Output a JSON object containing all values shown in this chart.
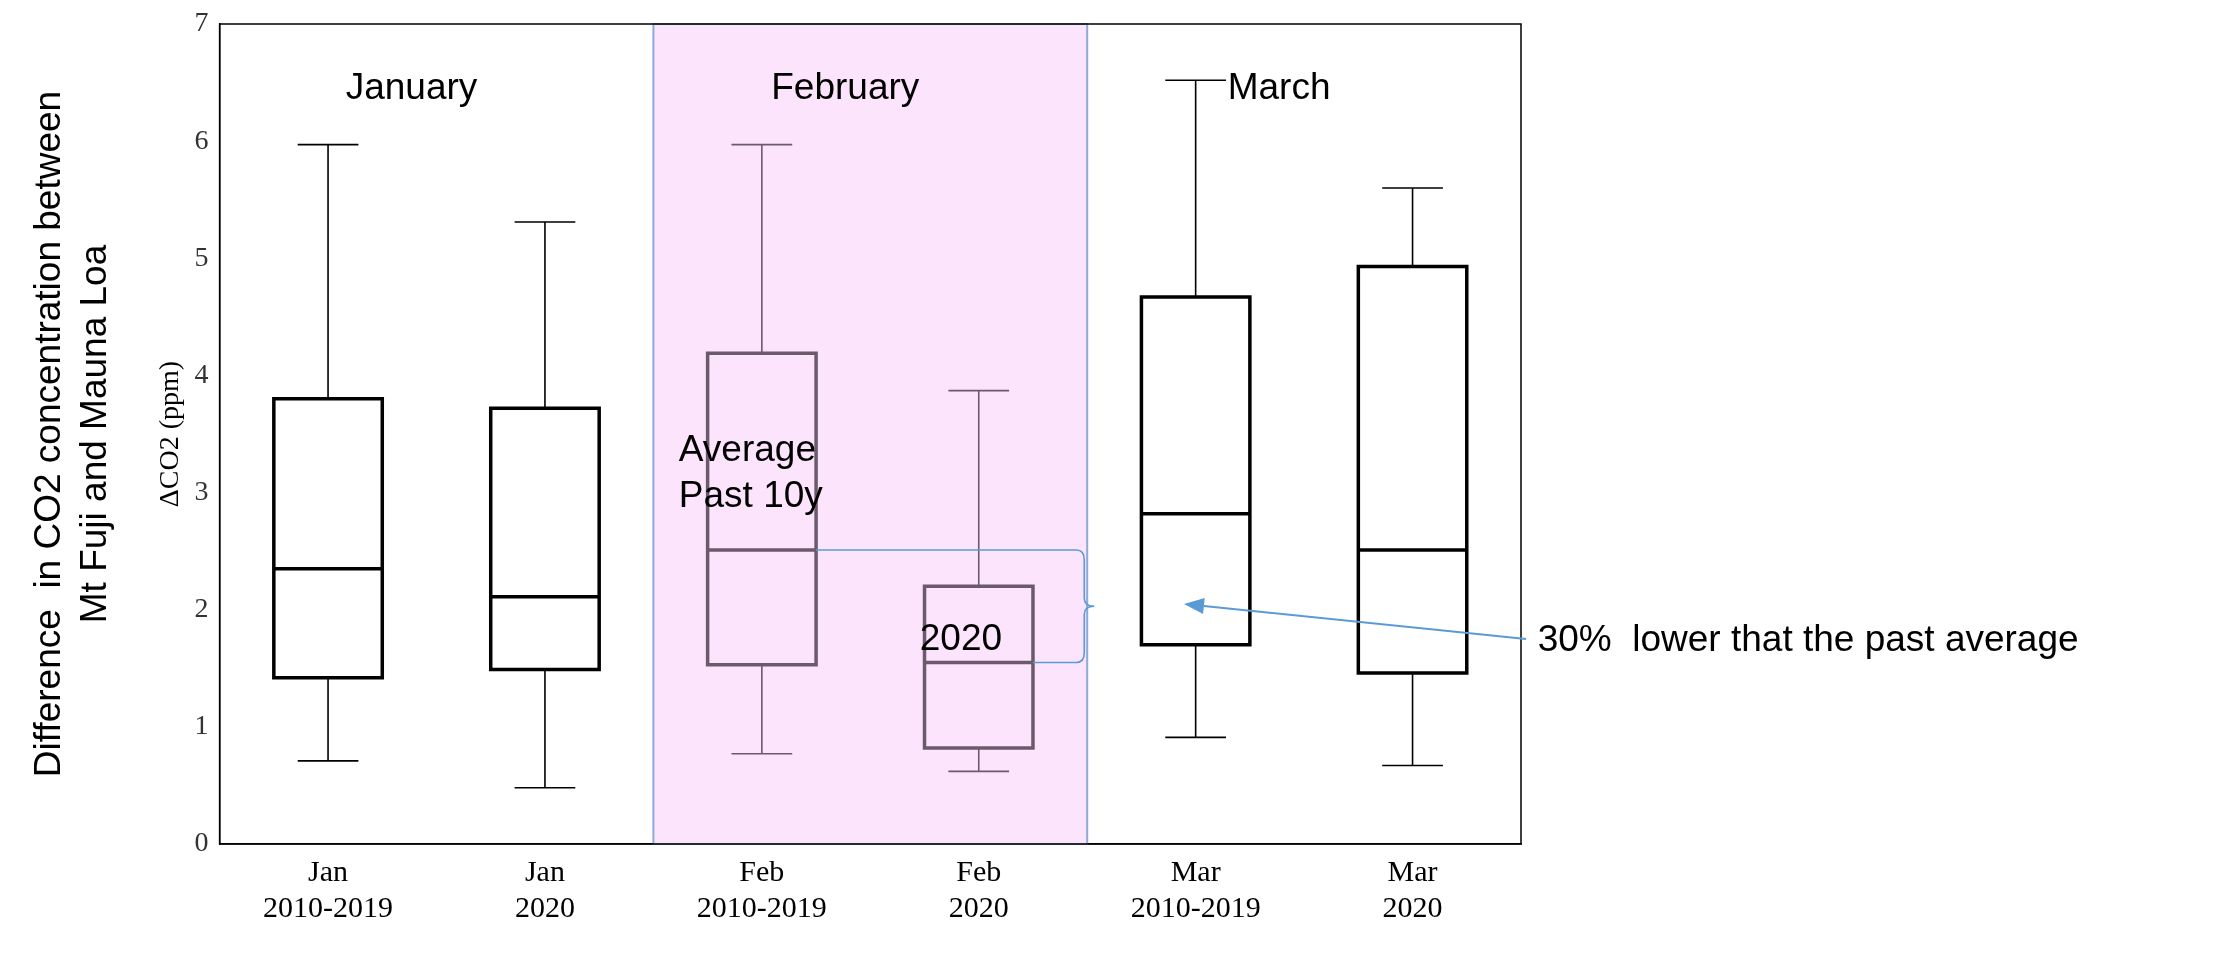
{
  "chart_data": {
    "type": "box",
    "ylabel": "ΔCO2 (ppm)",
    "categories": [
      "Jan 2010-2019",
      "Jan 2020",
      "Feb 2010-2019",
      "Feb 2020",
      "Mar 2010-2019",
      "Mar 2020"
    ],
    "boxes": [
      {
        "low": 0.71,
        "q1": 1.42,
        "median": 2.35,
        "q3": 3.8,
        "high": 5.97
      },
      {
        "low": 0.48,
        "q1": 1.49,
        "median": 2.11,
        "q3": 3.72,
        "high": 5.31
      },
      {
        "low": 0.77,
        "q1": 1.53,
        "median": 2.51,
        "q3": 4.19,
        "high": 5.97
      },
      {
        "low": 0.62,
        "q1": 0.82,
        "median": 1.55,
        "q3": 2.2,
        "high": 3.87
      },
      {
        "low": 0.91,
        "q1": 1.7,
        "median": 2.82,
        "q3": 4.67,
        "high": 6.52
      },
      {
        "low": 0.67,
        "q1": 1.46,
        "median": 2.51,
        "q3": 4.93,
        "high": 5.6
      }
    ],
    "colors": [
      "#000000",
      "#000000",
      "#6b5a6b",
      "#6b5a6b",
      "#000000",
      "#000000"
    ],
    "ylim": [
      0,
      7
    ],
    "yticks": [
      0,
      1,
      2,
      3,
      4,
      5,
      6,
      7
    ],
    "grid": false,
    "bands": [
      {
        "axis": "x",
        "from": "Feb 2010-2019",
        "to": "Feb 2020",
        "color": "#fce4fc"
      }
    ],
    "annotations": [
      "Difference  in CO2 concentration between Mt Fuji and Mauna Loa",
      "January",
      "February",
      "March",
      {
        "text": "Average Past 10y",
        "x": "Feb 2010-2019",
        "y": 2.51
      },
      {
        "text": "2020",
        "x": "Feb 2020",
        "y": 1.55
      },
      {
        "text": "30%  lower that the past average",
        "x": "Mar 2010-2019",
        "y": 2.05
      }
    ]
  }
}
